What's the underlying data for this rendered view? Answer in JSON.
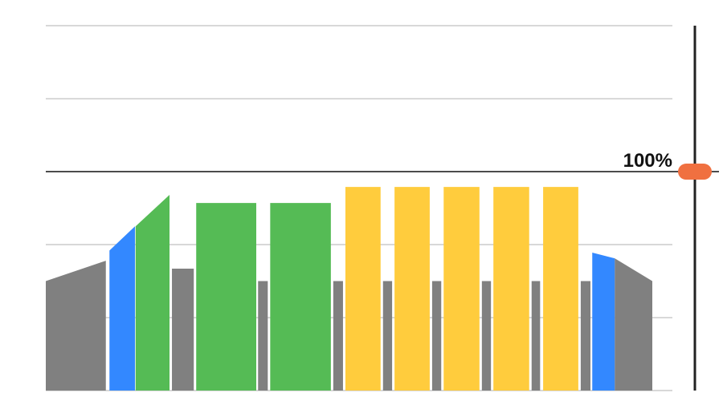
{
  "chart_data": {
    "type": "area",
    "xlim": [
      0,
      100
    ],
    "ylim": [
      0,
      166.7
    ],
    "yticks": [
      0,
      33.3,
      66.7,
      133.3,
      166.7
    ],
    "grid": true,
    "reference": {
      "value": 100,
      "label": "100%",
      "color": "#f07040"
    },
    "series": [
      {
        "color": "#808080",
        "x": [
          0,
          9.9,
          null,
          20.8,
          24.4,
          null,
          35.0,
          36.6,
          null,
          47.4,
          49.0,
          null,
          55.6,
          57.1,
          null,
          63.7,
          65.2,
          null,
          71.9,
          73.4,
          null,
          80.1,
          81.5,
          null,
          88.2,
          89.8,
          null,
          93.8,
          100
        ],
        "values": [
          50,
          59.3,
          null,
          55.7,
          55.7,
          null,
          50,
          50,
          null,
          50,
          50,
          null,
          50,
          50,
          null,
          50,
          50,
          null,
          50,
          50,
          null,
          50,
          50,
          null,
          50,
          50,
          null,
          60.4,
          50
        ]
      },
      {
        "color": "#3388ff",
        "x": [
          10.5,
          14.7,
          null,
          90.1,
          93.8
        ],
        "values": [
          64,
          75,
          null,
          63,
          60.4
        ]
      },
      {
        "color": "#55bb55",
        "x": [
          14.8,
          20.4,
          null,
          24.8,
          34.7,
          null,
          37.0,
          47.0
        ],
        "values": [
          75,
          89.4,
          null,
          85.7,
          85.7,
          null,
          85.7,
          85.7
        ]
      },
      {
        "color": "#ffcc3d",
        "x": [
          49.4,
          55.2,
          null,
          57.5,
          63.3,
          null,
          65.6,
          71.5,
          null,
          73.8,
          79.7,
          null,
          82.0,
          87.8
        ],
        "values": [
          93,
          93,
          null,
          93,
          93,
          null,
          93,
          93,
          null,
          93,
          93,
          null,
          93,
          93
        ]
      }
    ]
  }
}
